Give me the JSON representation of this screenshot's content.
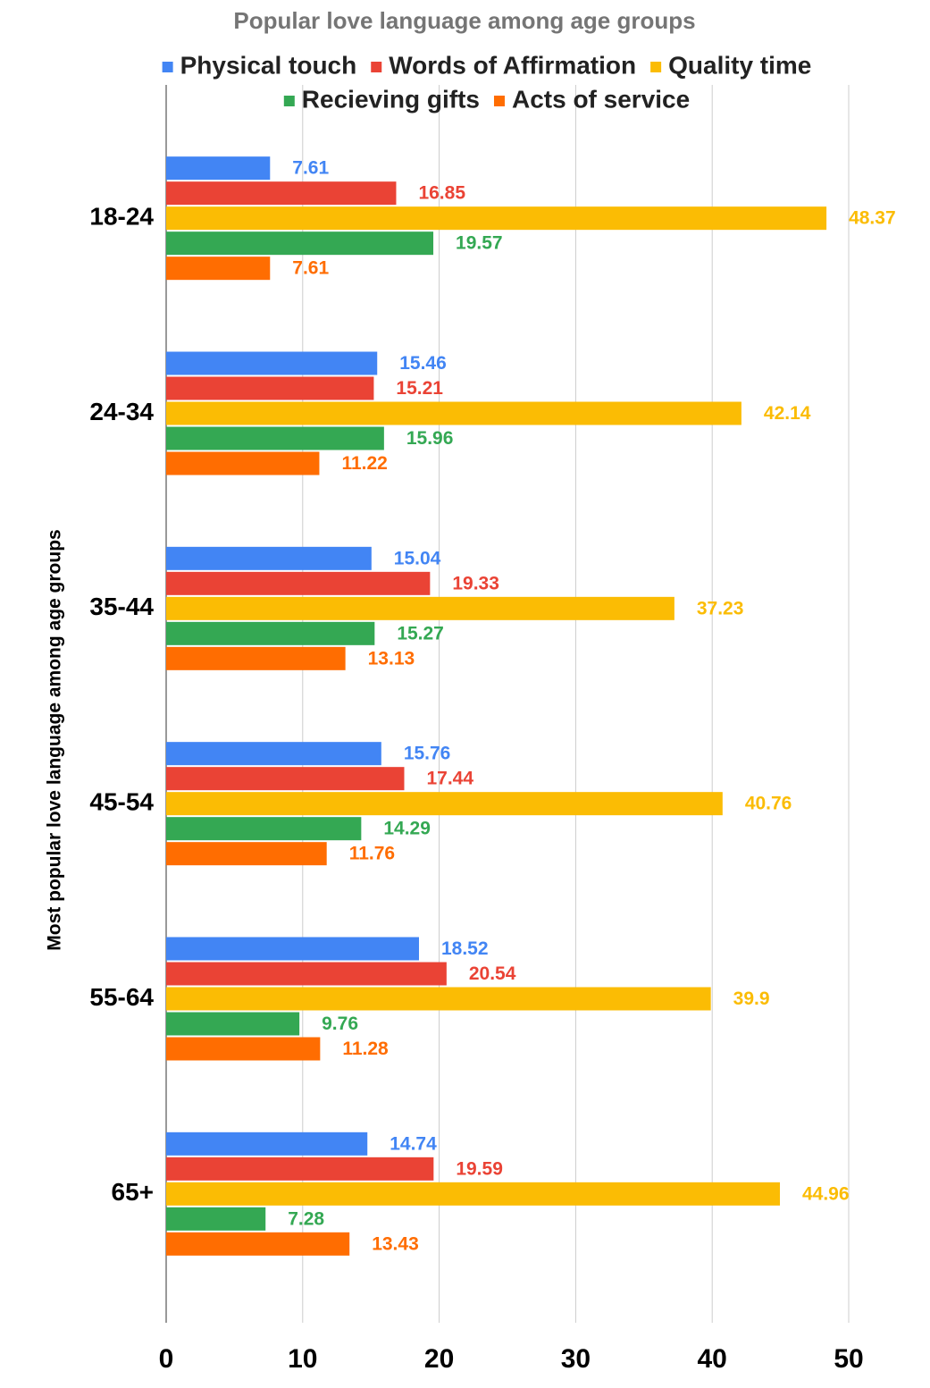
{
  "chart_data": {
    "type": "hbar",
    "title": "Popular love language among age groups",
    "y_axis_label": "Most popular love language among age groups",
    "categories": [
      "18-24",
      "24-34",
      "35-44",
      "45-54",
      "55-64",
      "65+"
    ],
    "series": [
      {
        "name": "Physical touch",
        "color": "#4285f4",
        "values": [
          7.61,
          15.46,
          15.04,
          15.76,
          18.52,
          14.74
        ]
      },
      {
        "name": "Words of Affirmation",
        "color": "#ea4335",
        "values": [
          16.85,
          15.21,
          19.33,
          17.44,
          20.54,
          19.59
        ]
      },
      {
        "name": "Quality time",
        "color": "#fbbc04",
        "values": [
          48.37,
          42.14,
          37.23,
          40.76,
          39.9,
          44.96
        ]
      },
      {
        "name": "Recieving gifts",
        "color": "#34a853",
        "values": [
          19.57,
          15.96,
          15.27,
          14.29,
          9.76,
          7.28
        ]
      },
      {
        "name": "Acts of service",
        "color": "#ff6d01",
        "values": [
          7.61,
          11.22,
          13.13,
          11.76,
          11.28,
          13.43
        ]
      }
    ],
    "xlim": [
      0,
      50
    ],
    "xticks": [
      0,
      10,
      20,
      30,
      40,
      50
    ],
    "grid": true,
    "legend": "top",
    "data_labels": true
  }
}
